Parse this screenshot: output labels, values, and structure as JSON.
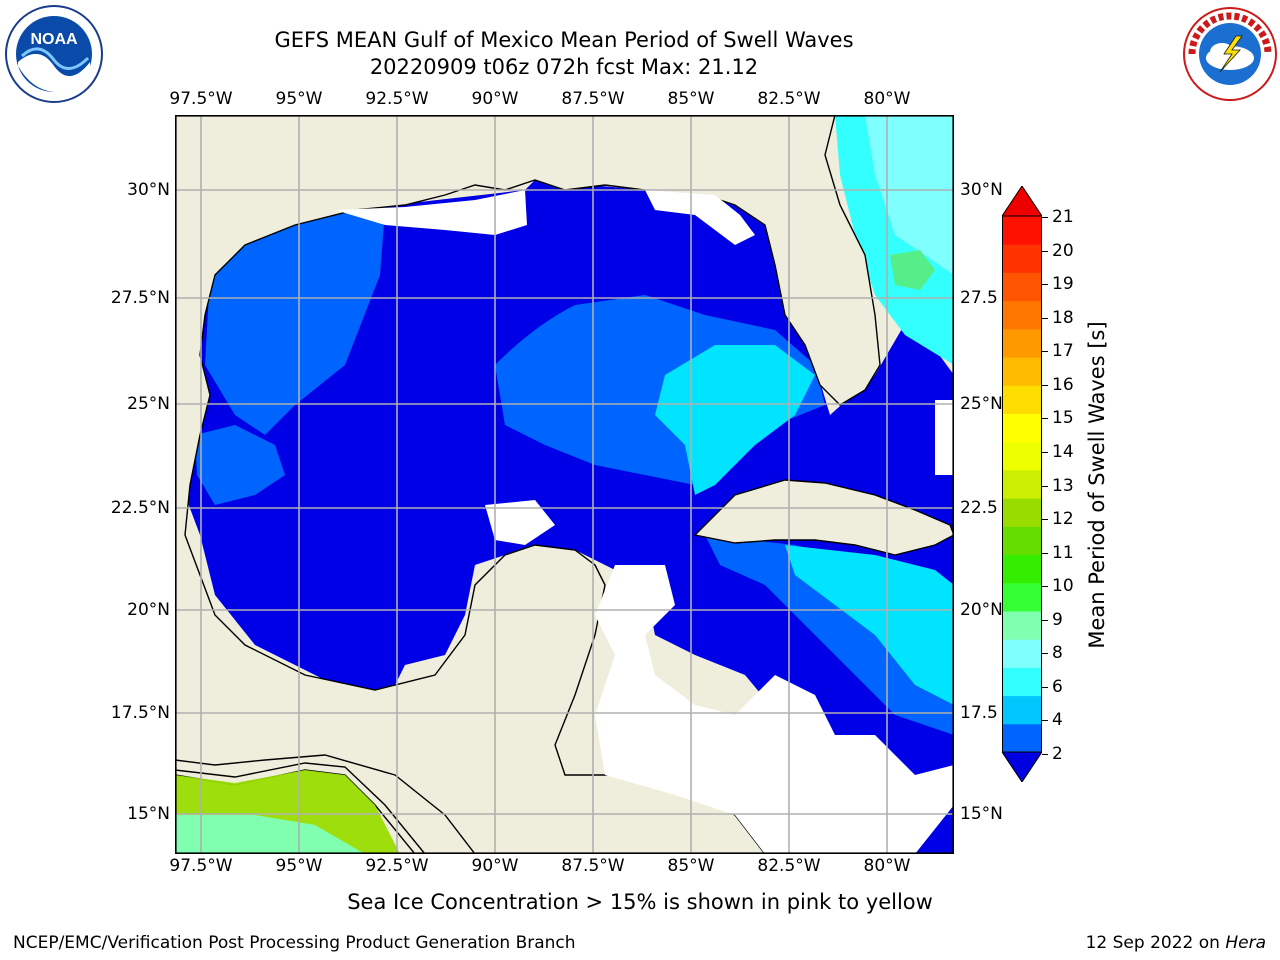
{
  "title": {
    "line1": "GEFS MEAN Gulf of Mexico Mean Period of Swell Waves",
    "line2": "20220909 t06z 072h fcst   Max: 21.12"
  },
  "map": {
    "lon_ticks": [
      "97.5°W",
      "95°W",
      "92.5°W",
      "90°W",
      "87.5°W",
      "85°W",
      "82.5°W",
      "80°W"
    ],
    "lat_ticks_left": [
      "30°N",
      "27.5°N",
      "25°N",
      "22.5°N",
      "20°N",
      "17.5°N",
      "15°N"
    ],
    "lat_ticks_right": [
      "30°N",
      "27.5",
      "25°N",
      "22.5",
      "20°N",
      "17.5",
      "15°N"
    ],
    "land_color": "#efeddc",
    "gridline_color": "#b0b0b0"
  },
  "colorbar": {
    "label": "Mean Period of Swell Waves [s]",
    "ticks": [
      "21",
      "20",
      "19",
      "18",
      "17",
      "16",
      "15",
      "14",
      "13",
      "12",
      "11",
      "10",
      "9",
      "8",
      "6",
      "4",
      "2"
    ],
    "colors": [
      "#0000e0",
      "#0064ff",
      "#00c8ff",
      "#33ffff",
      "#80ffff",
      "#80ffb0",
      "#33ff33",
      "#33ee00",
      "#66dd00",
      "#99dd00",
      "#ccee00",
      "#eeff00",
      "#ffff00",
      "#ffdd00",
      "#ffbb00",
      "#ff9900",
      "#ff7700",
      "#ff5500",
      "#ff3300",
      "#ff1100",
      "#ee0000"
    ]
  },
  "note": "Sea Ice Concentration > 15% is shown in pink to yellow",
  "footer": {
    "left": "NCEP/EMC/Verification Post Processing Product Generation Branch",
    "date": "12 Sep 2022 on ",
    "machine": "Hera"
  },
  "logos": {
    "noaa": "NOAA",
    "nws": "NATIONAL WEATHER SERVICE"
  }
}
